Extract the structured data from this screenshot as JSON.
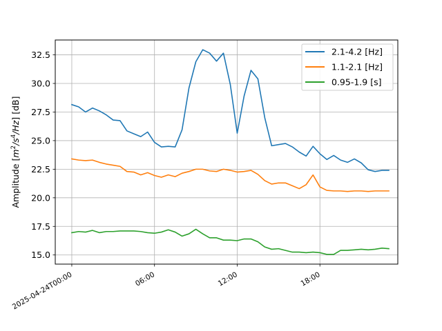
{
  "chart_data": {
    "type": "line",
    "ylabel_parts": {
      "pre": "Amplitude [",
      "m": "m",
      "two": "2",
      "slash1": "/",
      "s": "s",
      "four": "4",
      "slash2": "/",
      "hz": "Hz",
      "post": "] [dB]"
    },
    "ylim": [
      14.2,
      33.8
    ],
    "xlim": [
      -1.2,
      23.65
    ],
    "grid": true,
    "legend_position": "top-right",
    "y_ticks": [
      {
        "value": 15.0,
        "label": "15.0"
      },
      {
        "value": 17.5,
        "label": "17.5"
      },
      {
        "value": 20.0,
        "label": "20.0"
      },
      {
        "value": 22.5,
        "label": "22.5"
      },
      {
        "value": 25.0,
        "label": "25.0"
      },
      {
        "value": 27.5,
        "label": "27.5"
      },
      {
        "value": 30.0,
        "label": "30.0"
      },
      {
        "value": 32.5,
        "label": "32.5"
      }
    ],
    "x_ticks": [
      {
        "value": 0,
        "label": "2025-04-24T00:00"
      },
      {
        "value": 6,
        "label": "06:00"
      },
      {
        "value": 12,
        "label": "12:00"
      },
      {
        "value": 18,
        "label": "18:00"
      }
    ],
    "x": [
      0,
      0.5,
      1,
      1.5,
      2,
      2.5,
      3,
      3.5,
      4,
      4.5,
      5,
      5.5,
      6,
      6.5,
      7,
      7.5,
      8,
      8.5,
      9,
      9.5,
      10,
      10.5,
      11,
      11.5,
      12,
      12.5,
      13,
      13.5,
      14,
      14.5,
      15,
      15.5,
      16,
      16.5,
      17,
      17.5,
      18,
      18.5,
      19,
      19.5,
      20,
      20.5,
      21,
      21.5,
      22,
      22.5,
      23
    ],
    "series": [
      {
        "name": "2.1-4.2 [Hz]",
        "color": "#1f77b4",
        "values": [
          28.15,
          27.95,
          27.5,
          27.85,
          27.6,
          27.25,
          26.8,
          26.75,
          25.85,
          25.6,
          25.35,
          25.75,
          24.85,
          24.45,
          24.5,
          24.45,
          25.95,
          29.6,
          31.9,
          32.95,
          32.65,
          31.95,
          32.65,
          29.9,
          25.65,
          28.9,
          31.15,
          30.4,
          27.0,
          24.55,
          24.65,
          24.75,
          24.45,
          24.0,
          23.65,
          24.5,
          23.85,
          23.35,
          23.7,
          23.3,
          23.1,
          23.4,
          23.05,
          22.45,
          22.3,
          22.4,
          22.4
        ]
      },
      {
        "name": "1.1-2.1 [Hz]",
        "color": "#ff7f0e",
        "values": [
          23.4,
          23.3,
          23.25,
          23.3,
          23.1,
          22.95,
          22.85,
          22.75,
          22.3,
          22.25,
          22.0,
          22.2,
          21.95,
          21.8,
          22.0,
          21.85,
          22.15,
          22.3,
          22.5,
          22.5,
          22.35,
          22.3,
          22.5,
          22.4,
          22.25,
          22.3,
          22.4,
          22.05,
          21.5,
          21.2,
          21.3,
          21.3,
          21.05,
          20.8,
          21.15,
          22.0,
          20.95,
          20.65,
          20.6,
          20.6,
          20.55,
          20.6,
          20.6,
          20.55,
          20.6,
          20.6,
          20.6
        ]
      },
      {
        "name": "0.95-1.9 [s]",
        "color": "#2ca02c",
        "values": [
          16.95,
          17.05,
          17.0,
          17.15,
          16.95,
          17.05,
          17.05,
          17.1,
          17.1,
          17.1,
          17.05,
          16.95,
          16.9,
          17.0,
          17.2,
          17.0,
          16.65,
          16.85,
          17.25,
          16.85,
          16.5,
          16.5,
          16.3,
          16.3,
          16.25,
          16.4,
          16.4,
          16.15,
          15.7,
          15.5,
          15.55,
          15.4,
          15.25,
          15.25,
          15.2,
          15.25,
          15.2,
          15.05,
          15.05,
          15.4,
          15.4,
          15.45,
          15.5,
          15.45,
          15.5,
          15.6,
          15.55
        ]
      }
    ]
  }
}
